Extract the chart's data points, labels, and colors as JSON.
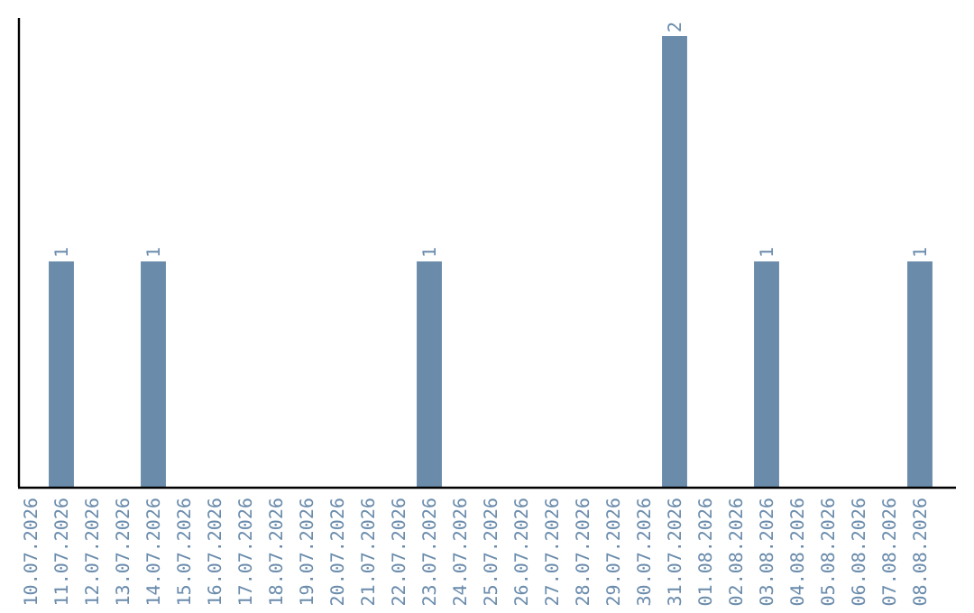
{
  "chart_data": {
    "type": "bar",
    "color": "#6a8caa",
    "categories": [
      "10.07.2026",
      "11.07.2026",
      "12.07.2026",
      "13.07.2026",
      "14.07.2026",
      "15.07.2026",
      "16.07.2026",
      "17.07.2026",
      "18.07.2026",
      "19.07.2026",
      "20.07.2026",
      "21.07.2026",
      "22.07.2026",
      "23.07.2026",
      "24.07.2026",
      "25.07.2026",
      "26.07.2026",
      "27.07.2026",
      "28.07.2026",
      "29.07.2026",
      "30.07.2026",
      "31.07.2026",
      "01.08.2026",
      "02.08.2026",
      "03.08.2026",
      "04.08.2026",
      "05.08.2026",
      "06.08.2026",
      "07.08.2026",
      "08.08.2026"
    ],
    "values": [
      0,
      1,
      0,
      0,
      1,
      0,
      0,
      0,
      0,
      0,
      0,
      0,
      0,
      1,
      0,
      0,
      0,
      0,
      0,
      0,
      0,
      2,
      0,
      0,
      1,
      0,
      0,
      0,
      0,
      1
    ],
    "value_labels": [
      null,
      "1",
      null,
      null,
      "1",
      null,
      null,
      null,
      null,
      null,
      null,
      null,
      null,
      "1",
      null,
      null,
      null,
      null,
      null,
      null,
      null,
      "2",
      null,
      null,
      "1",
      null,
      null,
      null,
      null,
      "1"
    ]
  }
}
